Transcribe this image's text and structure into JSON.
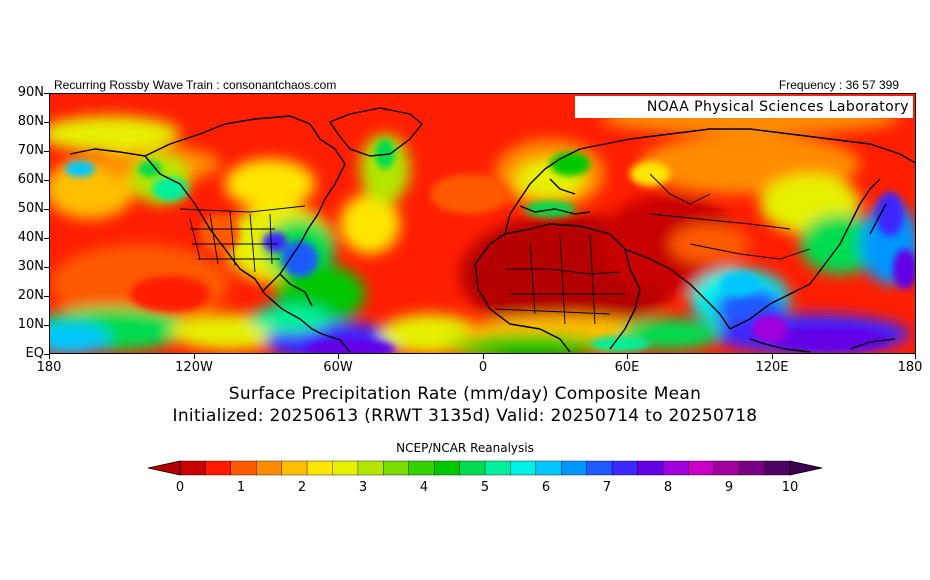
{
  "header": {
    "left_text": "Recurring Rossby Wave Train : consonantchaos.com",
    "right_text": "Frequency : 36 57 399"
  },
  "map": {
    "watermark": "NOAA Physical Sciences Laboratory",
    "lat_labels": [
      "90N",
      "80N",
      "70N",
      "60N",
      "50N",
      "40N",
      "30N",
      "20N",
      "10N",
      "EQ"
    ],
    "lon_labels": [
      "180",
      "120W",
      "60W",
      "0",
      "60E",
      "120E",
      "180"
    ]
  },
  "titles": {
    "line1": "Surface Precipitation Rate (mm/day) Composite Mean",
    "line2": "Initialized: 20250613 (RRWT 3135d) Valid: 20250714 to 20250718"
  },
  "source": "NCEP/NCAR Reanalysis",
  "colorbar": {
    "labels": [
      "0",
      "1",
      "2",
      "3",
      "4",
      "5",
      "6",
      "7",
      "8",
      "9",
      "10"
    ],
    "colors": [
      "#c80000",
      "#ff1a00",
      "#ff5a00",
      "#ff8c00",
      "#ffbe00",
      "#ffe600",
      "#e6f000",
      "#b4e600",
      "#78dc00",
      "#32d200",
      "#00c800",
      "#00dc50",
      "#00f09b",
      "#00f0e6",
      "#00c8ff",
      "#0096ff",
      "#1e5aff",
      "#3c28ff",
      "#6400e6",
      "#a000dc",
      "#c800c8",
      "#a0009b",
      "#780082",
      "#500064"
    ],
    "under_color": "#b40000",
    "over_color": "#3c0050"
  }
}
